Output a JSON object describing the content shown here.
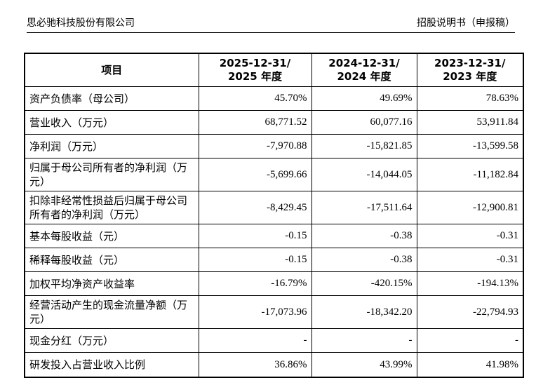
{
  "header": {
    "company": "思必驰科技股份有限公司",
    "doc_title": "招股说明书（申报稿）"
  },
  "table": {
    "columns": [
      {
        "line1": "项目",
        "line2": ""
      },
      {
        "line1": "2025-12-31/",
        "line2": "2025 年度"
      },
      {
        "line1": "2024-12-31/",
        "line2": "2024 年度"
      },
      {
        "line1": "2023-12-31/",
        "line2": "2023 年度"
      }
    ],
    "rows": [
      {
        "label": "资产负债率（母公司）",
        "v2025": "45.70%",
        "v2024": "49.69%",
        "v2023": "78.63%"
      },
      {
        "label": "营业收入（万元）",
        "v2025": "68,771.52",
        "v2024": "60,077.16",
        "v2023": "53,911.84"
      },
      {
        "label": "净利润（万元）",
        "v2025": "-7,970.88",
        "v2024": "-15,821.85",
        "v2023": "-13,599.58"
      },
      {
        "label": "归属于母公司所有者的净利润（万元）",
        "v2025": "-5,699.66",
        "v2024": "-14,044.05",
        "v2023": "-11,182.84"
      },
      {
        "label": "扣除非经常性损益后归属于母公司所有者的净利润（万元）",
        "v2025": "-8,429.45",
        "v2024": "-17,511.64",
        "v2023": "-12,900.81"
      },
      {
        "label": "基本每股收益（元）",
        "v2025": "-0.15",
        "v2024": "-0.38",
        "v2023": "-0.31"
      },
      {
        "label": "稀释每股收益（元）",
        "v2025": "-0.15",
        "v2024": "-0.38",
        "v2023": "-0.31"
      },
      {
        "label": "加权平均净资产收益率",
        "v2025": "-16.79%",
        "v2024": "-420.15%",
        "v2023": "-194.13%"
      },
      {
        "label": "经营活动产生的现金流量净额（万元）",
        "v2025": "-17,073.96",
        "v2024": "-18,342.20",
        "v2023": "-22,794.93"
      },
      {
        "label": "现金分红（万元）",
        "v2025": "-",
        "v2024": "-",
        "v2023": "-"
      },
      {
        "label": "研发投入占营业收入比例",
        "v2025": "36.86%",
        "v2024": "43.99%",
        "v2023": "41.98%"
      }
    ]
  }
}
